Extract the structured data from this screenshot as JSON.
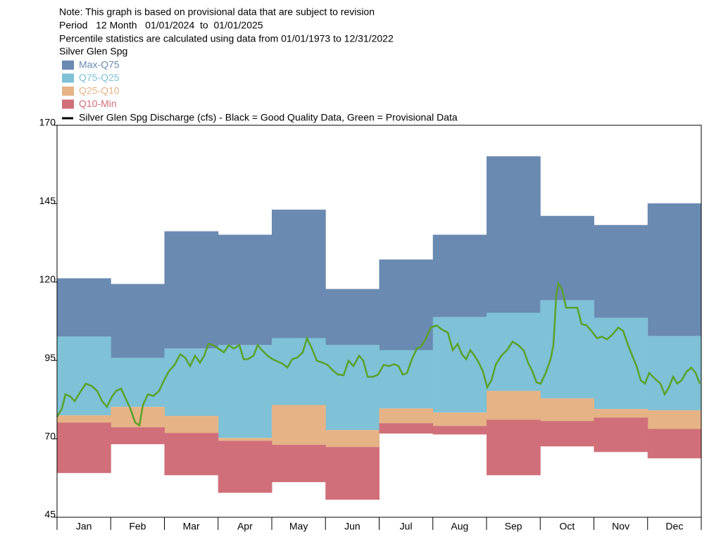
{
  "chart_data": {
    "type": "percentile_bands",
    "notes": [
      "Note: This graph is based on provisional data that are subject to revision",
      "Period   12 Month   01/01/2024  to  01/01/2025",
      "Percentile statistics are calculated using data from 01/01/1973 to 12/31/2022",
      "Silver Glen Spg"
    ],
    "categories": [
      "Jan",
      "Feb",
      "Mar",
      "Apr",
      "May",
      "Jun",
      "Jul",
      "Aug",
      "Sep",
      "Oct",
      "Nov",
      "Dec"
    ],
    "bands": [
      {
        "name": "Max-Q75",
        "color": "#6a8ab2",
        "text_color": "#6a8ab2",
        "low": [
          102.6,
          95.8,
          98.8,
          99.9,
          102.1,
          99.9,
          98.3,
          108.8,
          110.2,
          114.2,
          108.6,
          102.8
        ],
        "high": [
          121.2,
          119.4,
          136.2,
          135.1,
          143.1,
          117.8,
          127.2,
          135.1,
          160.1,
          141.1,
          138.2,
          145.1
        ]
      },
      {
        "name": "Q75-Q25",
        "color": "#7fc1d6",
        "text_color": "#7fc1d6",
        "low": [
          77.5,
          80.2,
          77.3,
          70.3,
          80.8,
          72.8,
          79.7,
          78.4,
          85.3,
          82.9,
          79.5,
          79.1
        ],
        "high": [
          102.6,
          95.8,
          98.8,
          99.9,
          102.1,
          99.9,
          98.3,
          108.8,
          110.2,
          114.2,
          108.6,
          102.8
        ]
      },
      {
        "name": "Q25-Q10",
        "color": "#e5b386",
        "text_color": "#e5b386",
        "low": [
          75.2,
          73.7,
          71.9,
          69.4,
          68.1,
          67.4,
          75.0,
          74.1,
          76.1,
          75.7,
          76.8,
          73.2
        ],
        "high": [
          77.5,
          80.2,
          77.3,
          70.3,
          80.8,
          72.8,
          79.7,
          78.4,
          85.3,
          82.9,
          79.5,
          79.1
        ]
      },
      {
        "name": "Q10-Min",
        "color": "#d06f79",
        "text_color": "#d06f79",
        "low": [
          59.1,
          68.3,
          58.4,
          52.8,
          56.2,
          50.6,
          71.7,
          71.4,
          58.4,
          67.6,
          65.8,
          63.8
        ],
        "high": [
          75.2,
          73.7,
          71.9,
          69.4,
          68.1,
          67.4,
          75.0,
          74.1,
          76.1,
          75.7,
          76.8,
          73.2
        ]
      }
    ],
    "line": {
      "name": "Silver Glen Spg Discharge (cfs) - Black = Good Quality Data, Green = Provisional Data",
      "color": "#5aa12a",
      "x": [
        0,
        2.8,
        4.8,
        7.6,
        10,
        13.6,
        16.4,
        19.6,
        22.8,
        25.6,
        28.4,
        30.8,
        33.6,
        36.4,
        38.8,
        41.6,
        44.4,
        46.8,
        48.8,
        51.6,
        54.8,
        58,
        60.8,
        63.6,
        66.8,
        70,
        72.8,
        75.6,
        78.4,
        81.2,
        83.6,
        86,
        88.8,
        91.6,
        94.8,
        97.6,
        100.4,
        103.6,
        106,
        108.4,
        111.6,
        114,
        116.4,
        119.6,
        122.4,
        125.2,
        128,
        130.8,
        133.6,
        136.4,
        139.6,
        142,
        144.8,
        147.6,
        150.8,
        153.6,
        156.4,
        159.6,
        162.8,
        165.6,
        168.4,
        171.6,
        174,
        176.4,
        179.6,
        182.4,
        185.6,
        188.4,
        191.6,
        194,
        196.4,
        198.8,
        201.6,
        204.4,
        206.8,
        209.6,
        212.4,
        215.6,
        218.8,
        222,
        224.8,
        227.6,
        230,
        232.4,
        234.8,
        237.2,
        239.6,
        242,
        244.4,
        246.8,
        249.2,
        252.4,
        255.6,
        258.8,
        262,
        265.2,
        267.6,
        270,
        272.4,
        274.8,
        277.6,
        280.4,
        282,
        283.6,
        284.8,
        286.8,
        289.2,
        292.4,
        295.6,
        298,
        300.8,
        303.6,
        306.8,
        309.6,
        312.4,
        315.6,
        318.8,
        321.6,
        324.4,
        326.8,
        329.2,
        331.6,
        334,
        336.4,
        339.6,
        342.8,
        345.2,
        347.6,
        350,
        352.4,
        354.8,
        357.6,
        360.4,
        362.8,
        365.2
      ],
      "values": [
        77.0,
        79.7,
        84.2,
        83.5,
        82.0,
        85.3,
        87.6,
        86.9,
        85.3,
        82.0,
        80.2,
        83.1,
        85.3,
        86.0,
        83.1,
        79.7,
        75.2,
        74.3,
        80.8,
        84.2,
        83.7,
        85.3,
        88.7,
        91.6,
        93.6,
        97.0,
        95.9,
        93.2,
        96.5,
        94.3,
        96.5,
        100.3,
        99.9,
        98.8,
        97.6,
        99.9,
        98.8,
        99.9,
        95.4,
        95.4,
        96.5,
        99.9,
        98.3,
        96.5,
        95.4,
        94.7,
        94.0,
        92.7,
        95.4,
        95.9,
        97.6,
        102.1,
        98.8,
        94.9,
        94.3,
        93.6,
        92.0,
        90.5,
        90.3,
        94.9,
        93.2,
        96.5,
        94.9,
        89.8,
        89.8,
        90.5,
        93.6,
        93.2,
        93.8,
        93.2,
        90.5,
        91.0,
        95.4,
        98.8,
        99.4,
        102.1,
        105.5,
        106.2,
        104.8,
        103.9,
        98.3,
        100.3,
        97.0,
        95.4,
        98.3,
        96.5,
        94.3,
        91.4,
        86.4,
        88.7,
        93.6,
        96.5,
        98.3,
        101.0,
        99.9,
        98.1,
        94.3,
        91.6,
        88.0,
        87.6,
        91.0,
        95.4,
        99.9,
        115.6,
        119.6,
        117.8,
        111.8,
        111.8,
        111.8,
        106.6,
        106.2,
        104.4,
        102.1,
        102.6,
        101.7,
        103.3,
        105.5,
        104.4,
        99.9,
        96.5,
        93.2,
        88.7,
        87.6,
        91.0,
        89.2,
        87.6,
        84.2,
        86.4,
        89.8,
        87.6,
        88.7,
        91.4,
        92.7,
        91.0,
        87.6
      ]
    },
    "xlim": [
      0,
      366
    ],
    "ylim": [
      45,
      170
    ],
    "yticks": [
      45,
      70,
      95,
      120,
      145,
      170
    ]
  }
}
